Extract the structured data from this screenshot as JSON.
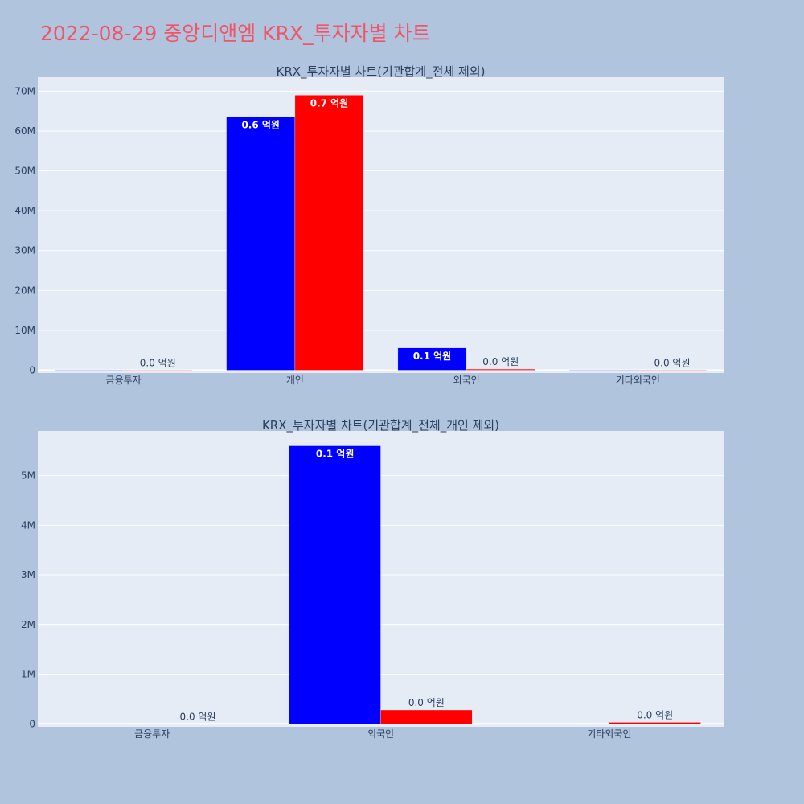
{
  "title": "2022-08-29 중앙디앤엠 KRX_투자자별 차트",
  "colors": {
    "background": "#b0c4de",
    "plot_bg": "#e5ecf6",
    "title": "#ef5567",
    "series_buy": "#0000ff",
    "series_sell": "#ff0000",
    "text": "#2a3f5f"
  },
  "chart_data": [
    {
      "type": "bar",
      "title": "KRX_투자자별 차트(기관합계_전체 제외)",
      "categories": [
        "금융투자",
        "개인",
        "외국인",
        "기타외국인"
      ],
      "series": [
        {
          "color": "#0000ff",
          "values": [
            0,
            63500000,
            5600000,
            0
          ],
          "labels": [
            "",
            "0.6 억원",
            "0.1 억원",
            ""
          ]
        },
        {
          "color": "#ff0000",
          "values": [
            0,
            69000000,
            280000,
            30000
          ],
          "labels": [
            "0.0 억원",
            "0.7 억원",
            "0.0 억원",
            "0.0 억원"
          ]
        }
      ],
      "ylim": [
        -700000,
        73500000
      ],
      "yticks": [
        0,
        10000000,
        20000000,
        30000000,
        40000000,
        50000000,
        60000000,
        70000000
      ],
      "ytick_labels": [
        "0",
        "10M",
        "20M",
        "30M",
        "40M",
        "50M",
        "60M",
        "70M"
      ],
      "grid": true,
      "legend": "none"
    },
    {
      "type": "bar",
      "title": "KRX_투자자별 차트(기관합계_전체_개인 제외)",
      "categories": [
        "금융투자",
        "외국인",
        "기타외국인"
      ],
      "series": [
        {
          "color": "#0000ff",
          "values": [
            0,
            5600000,
            0
          ],
          "labels": [
            "",
            "0.1 억원",
            ""
          ]
        },
        {
          "color": "#ff0000",
          "values": [
            0,
            280000,
            30000
          ],
          "labels": [
            "0.0 억원",
            "0.0 억원",
            "0.0 억원"
          ]
        }
      ],
      "ylim": [
        -60000,
        5900000
      ],
      "yticks": [
        0,
        1000000,
        2000000,
        3000000,
        4000000,
        5000000
      ],
      "ytick_labels": [
        "0",
        "1M",
        "2M",
        "3M",
        "4M",
        "5M"
      ],
      "grid": true,
      "legend": "none"
    }
  ]
}
